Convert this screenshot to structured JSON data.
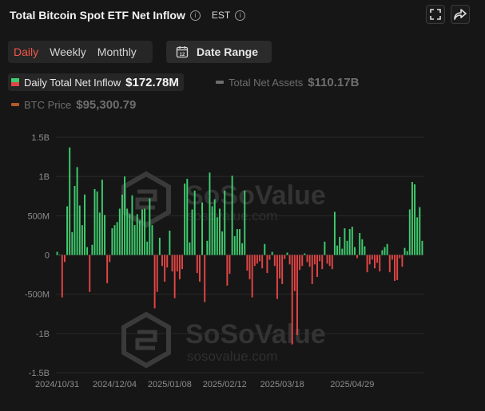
{
  "header": {
    "title": "Total Bitcoin Spot ETF Net Inflow",
    "timezone": "EST",
    "info_icon": "info-icon",
    "fullscreen_icon": "fullscreen-icon",
    "share_icon": "share-icon"
  },
  "tabs": [
    {
      "label": "Daily",
      "active": true
    },
    {
      "label": "Weekly",
      "active": false
    },
    {
      "label": "Monthly",
      "active": false
    }
  ],
  "date_range": {
    "label": "Date Range",
    "icon_text": "12",
    "icon": "calendar-icon"
  },
  "legend": [
    {
      "label": "Daily Total Net Inflow",
      "value": "$172.78M",
      "active": true,
      "color": "#3fcc6e",
      "color2": "#e24545"
    },
    {
      "label": "Total Net Assets",
      "value": "$110.17B",
      "active": false,
      "color": "#6e6e6e"
    },
    {
      "label": "BTC Price",
      "value": "$95,300.79",
      "active": false,
      "color": "#b35a2a"
    }
  ],
  "watermark": {
    "brand": "SoSoValue",
    "url": "sosovalue.com"
  },
  "colors": {
    "positive": "#3fcc6e",
    "negative": "#e24545",
    "grid": "#2a2a2a",
    "axis_text": "#8c8c8c"
  },
  "chart_data": {
    "type": "bar",
    "title": "Total Bitcoin Spot ETF Net Inflow",
    "ylabel": "",
    "ylim": [
      -1500,
      1500
    ],
    "unit": "USD millions",
    "y_ticks": [
      {
        "value": 1500,
        "label": "1.5B"
      },
      {
        "value": 1000,
        "label": "1B"
      },
      {
        "value": 500,
        "label": "500M"
      },
      {
        "value": 0,
        "label": "0"
      },
      {
        "value": -500,
        "label": "-500M"
      },
      {
        "value": -1000,
        "label": "-1B"
      },
      {
        "value": -1500,
        "label": "-1.5B"
      }
    ],
    "x_ticks": [
      {
        "index": 0,
        "label": "2024/10/31"
      },
      {
        "index": 23,
        "label": "2024/12/04"
      },
      {
        "index": 45,
        "label": "2025/01/08"
      },
      {
        "index": 67,
        "label": "2025/02/12"
      },
      {
        "index": 90,
        "label": "2025/03/18"
      },
      {
        "index": 118,
        "label": "2025/04/29"
      }
    ],
    "grid": true,
    "series": [
      {
        "name": "Daily Total Net Inflow",
        "values": [
          40,
          0,
          -540,
          -90,
          620,
          1370,
          290,
          880,
          1120,
          630,
          380,
          770,
          100,
          -470,
          130,
          840,
          810,
          540,
          960,
          510,
          -360,
          -90,
          340,
          380,
          420,
          590,
          770,
          1000,
          590,
          520,
          760,
          380,
          520,
          440,
          580,
          590,
          170,
          720,
          380,
          -680,
          -470,
          220,
          -140,
          -340,
          -160,
          310,
          -210,
          -550,
          -210,
          -310,
          -180,
          910,
          970,
          160,
          580,
          820,
          -230,
          -340,
          670,
          -600,
          180,
          1050,
          620,
          710,
          480,
          590,
          300,
          820,
          -390,
          -240,
          1010,
          240,
          330,
          330,
          150,
          820,
          -200,
          -310,
          -540,
          -140,
          -110,
          -80,
          -170,
          140,
          -230,
          -60,
          40,
          -140,
          -560,
          -300,
          -370,
          -50,
          30,
          -120,
          -1140,
          -460,
          -1020,
          -190,
          -140,
          20,
          -90,
          -150,
          -370,
          -120,
          -280,
          -80,
          -180,
          170,
          -110,
          -140,
          -180,
          550,
          120,
          230,
          80,
          340,
          180,
          330,
          360,
          100,
          -40,
          280,
          200,
          110,
          -220,
          -120,
          -60,
          -170,
          -100,
          -210,
          60,
          100,
          140,
          -220,
          -60,
          -330,
          -320,
          -40,
          -150,
          90,
          50,
          580,
          930,
          900,
          480,
          610,
          180
        ]
      }
    ]
  }
}
